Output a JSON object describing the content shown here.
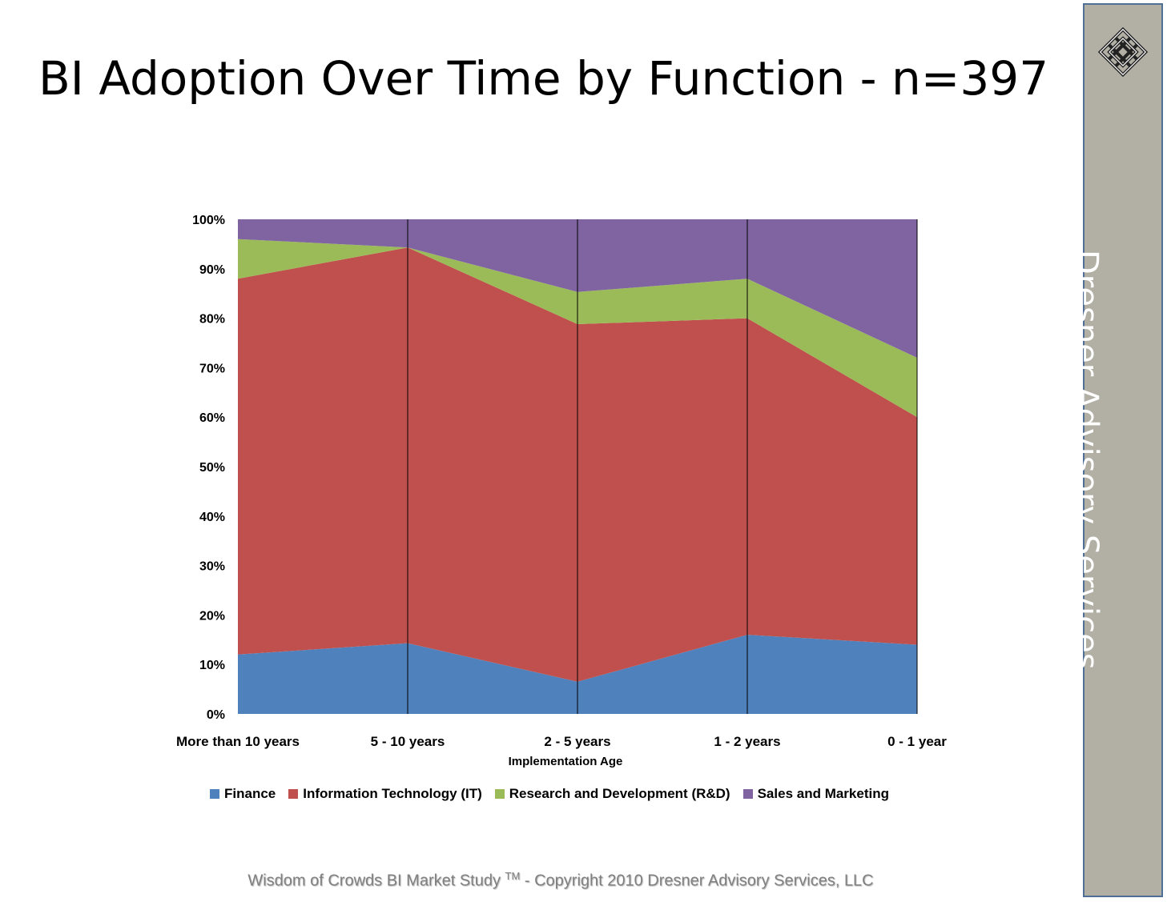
{
  "title": "BI Adoption Over Time by Function - n=397",
  "sidebar": {
    "text": "Dresner Advisory Services"
  },
  "footer": {
    "pre": "Wisdom of Crowds BI Market Study ",
    "tm": "TM",
    "post": " - Copyright 2010 Dresner Advisory Services, LLC"
  },
  "chart_data": {
    "type": "area",
    "stacked": "percent",
    "categories": [
      "More than 10 years",
      "5 - 10 years",
      "2 - 5 years",
      "1 - 2 years",
      "0 - 1 year"
    ],
    "xlabel": "Implementation Age",
    "ylabel": "",
    "ylim": [
      0,
      100
    ],
    "yticks": [
      "0%",
      "10%",
      "20%",
      "30%",
      "40%",
      "50%",
      "60%",
      "70%",
      "80%",
      "90%",
      "100%"
    ],
    "legend_position": "bottom",
    "series": [
      {
        "name": "Finance",
        "color": "#4f81bd",
        "values": [
          12,
          14.3,
          6.5,
          16,
          14
        ]
      },
      {
        "name": "Information Technology (IT)",
        "color": "#c0504d",
        "values": [
          76,
          80,
          72.3,
          64,
          46
        ]
      },
      {
        "name": "Research and Development (R&D)",
        "color": "#9bbb59",
        "values": [
          8,
          0,
          6.5,
          8,
          12
        ]
      },
      {
        "name": "Sales and Marketing",
        "color": "#8064a2",
        "values": [
          4,
          5.7,
          14.7,
          12,
          28
        ]
      }
    ]
  }
}
